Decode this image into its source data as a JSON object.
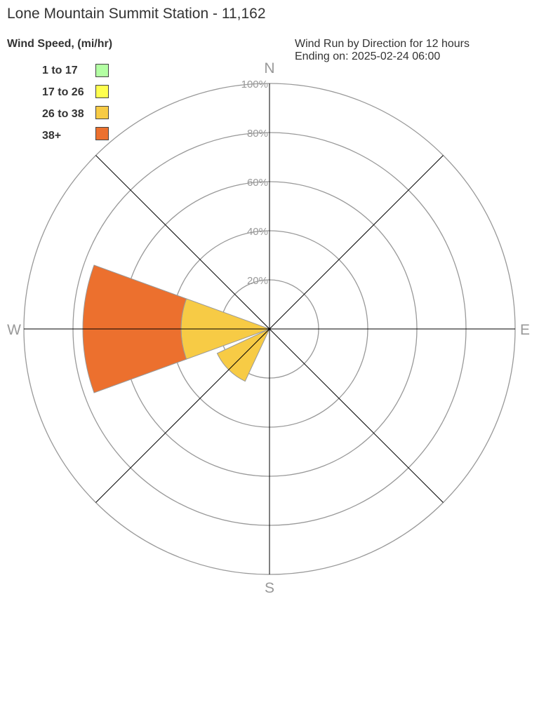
{
  "title": "Lone Mountain Summit Station - 11,162",
  "subtitle_line1": "Wind Run by Direction for 12 hours",
  "subtitle_line2": "Ending on: 2025-02-24 06:00",
  "chart_data": {
    "type": "wind-rose",
    "legend_title": "Wind Speed, (mi/hr)",
    "legend_placement": "top-left",
    "bins": [
      {
        "label": "1 to 17",
        "color": "#b3ffa3"
      },
      {
        "label": "17 to 26",
        "color": "#ffff4f"
      },
      {
        "label": "26 to 38",
        "color": "#f7cb45"
      },
      {
        "label": "38+",
        "color": "#ec702e"
      }
    ],
    "directions": [
      "N",
      "NE",
      "E",
      "SE",
      "S",
      "SW",
      "W",
      "NW"
    ],
    "compass_labels": [
      "N",
      "E",
      "S",
      "W"
    ],
    "radial_ticks": [
      "20%",
      "40%",
      "60%",
      "80%",
      "100%"
    ],
    "rmax": 100,
    "series": [
      {
        "direction": "W",
        "values": [
          0,
          0,
          36,
          40
        ]
      },
      {
        "direction": "SW",
        "values": [
          0,
          0,
          23.5,
          0
        ]
      }
    ]
  }
}
